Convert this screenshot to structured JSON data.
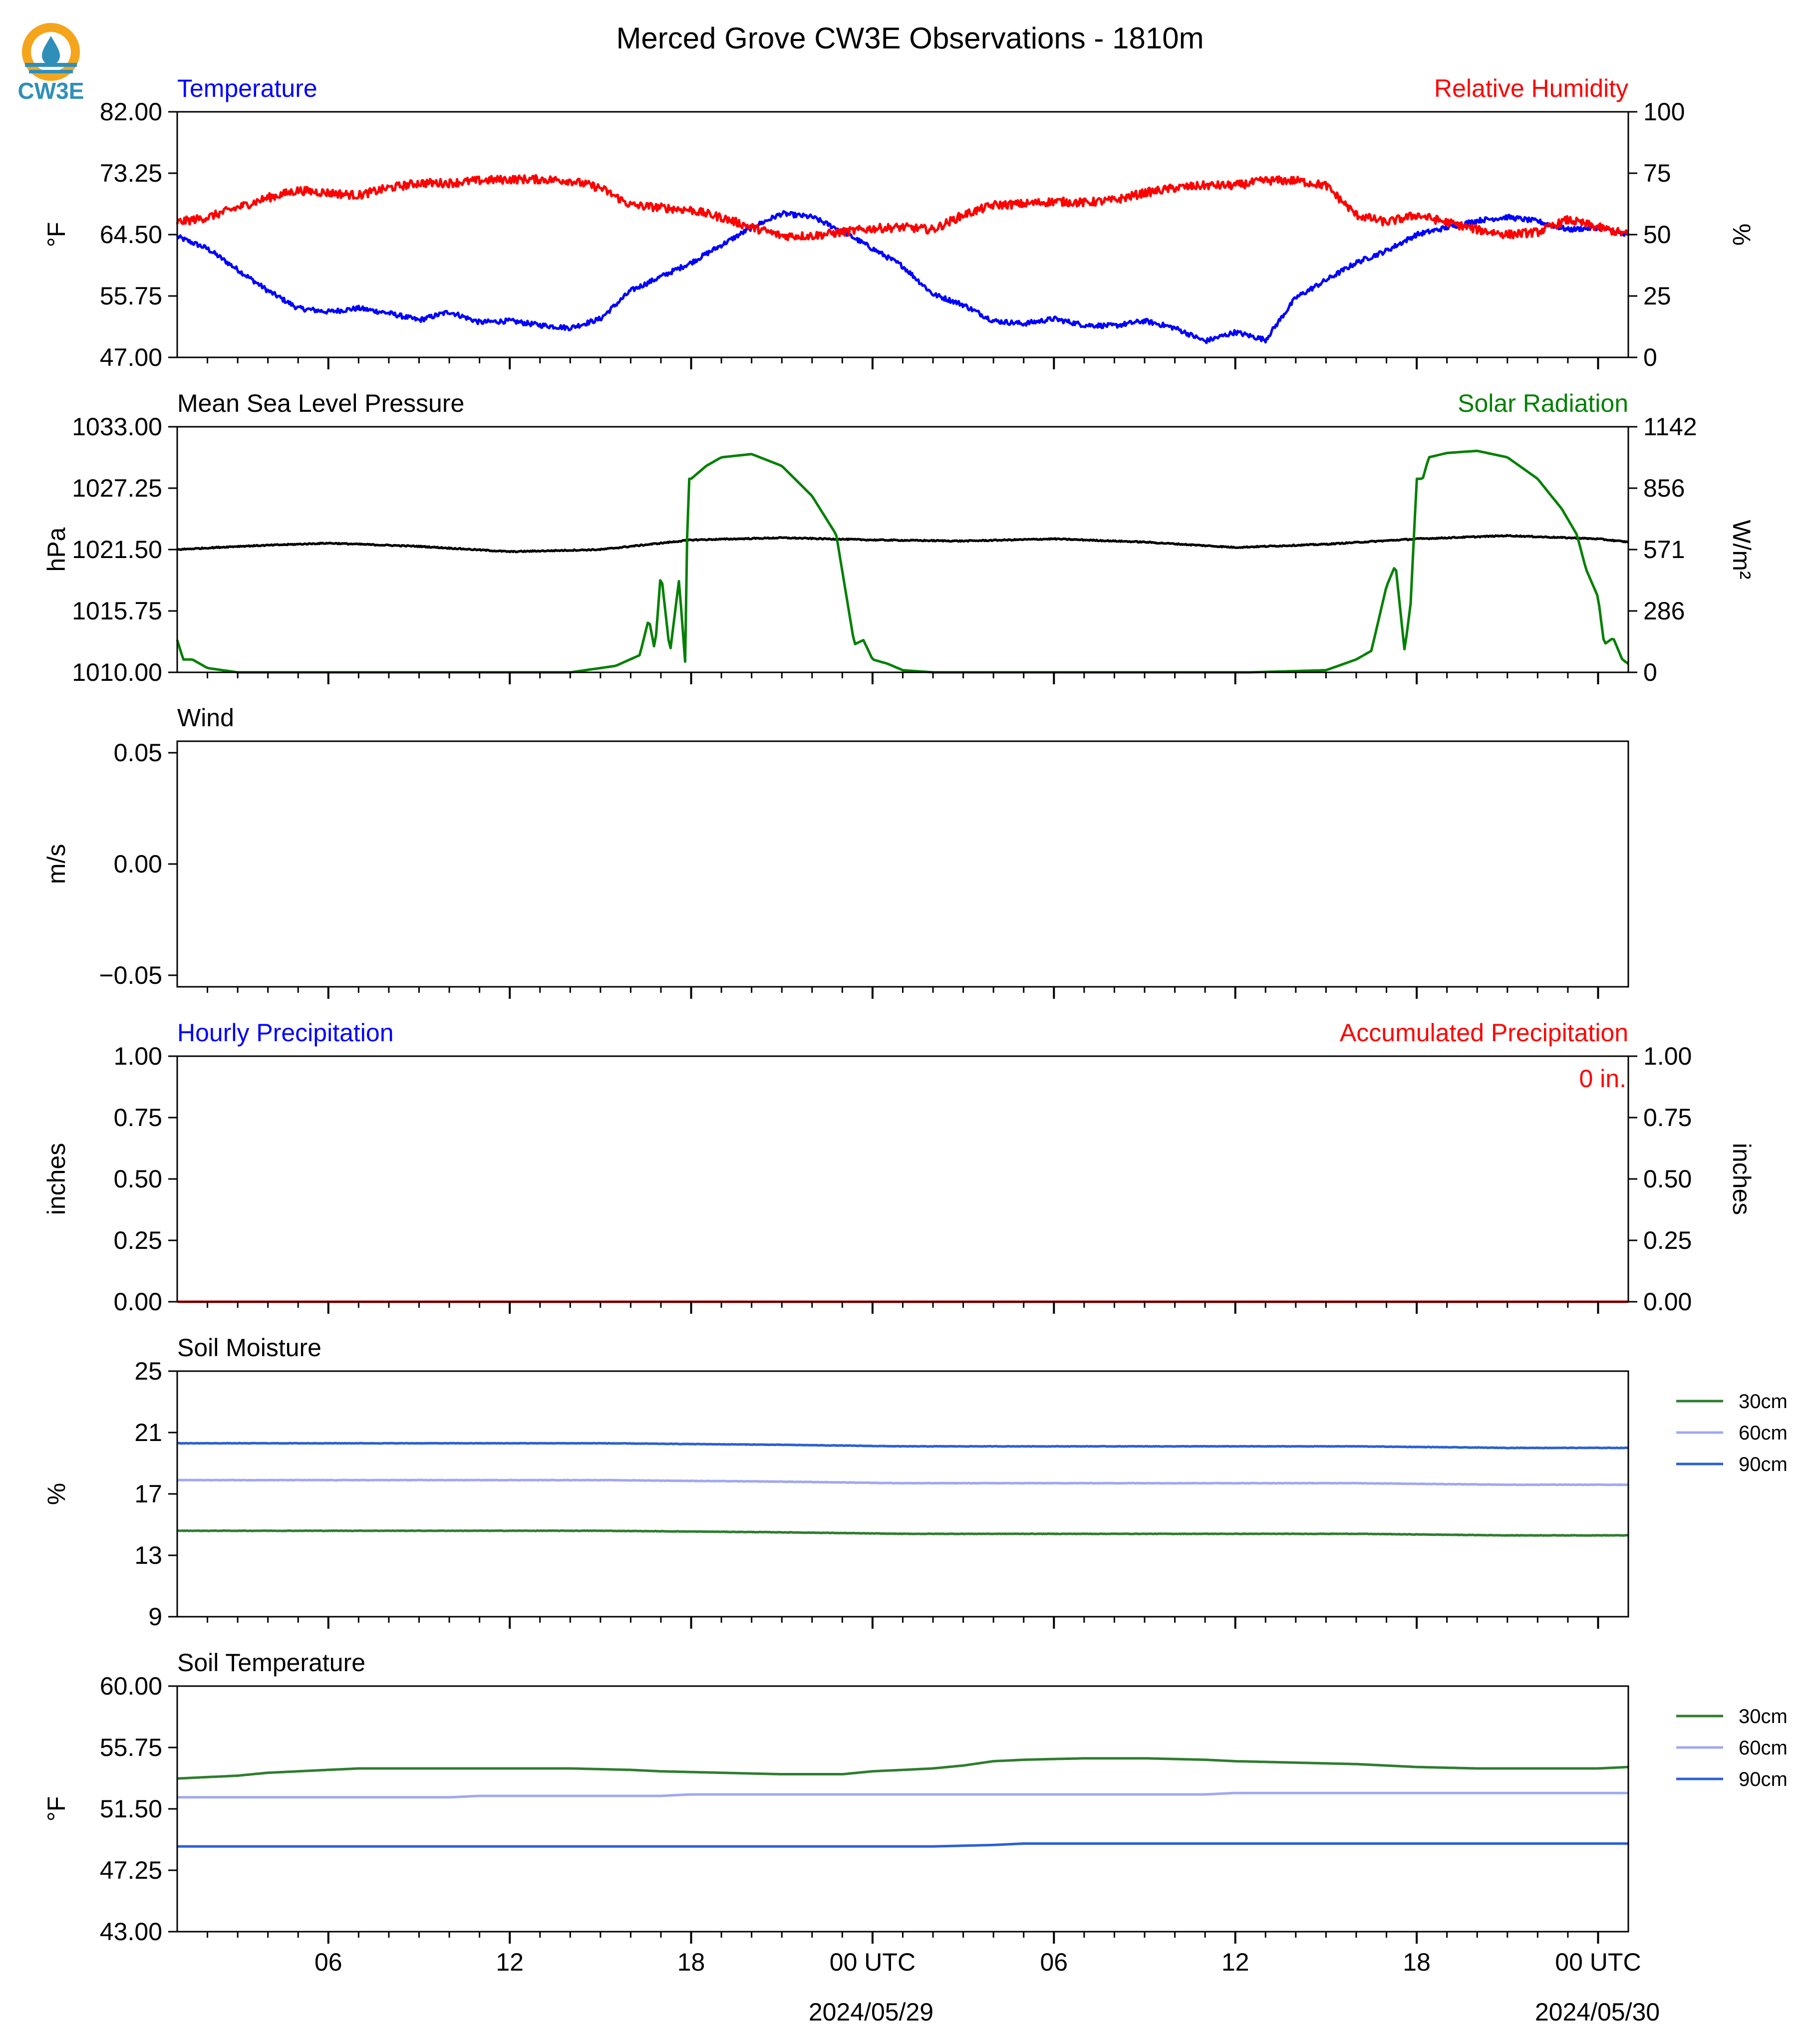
{
  "logo": {
    "text": "CW3E",
    "colors": {
      "ring": "#f4a51c",
      "drop": "#2f8fb9",
      "text": "#2f8fb9"
    }
  },
  "figure": {
    "title": "Merced Grove CW3E Observations - 1810m"
  },
  "x_axis": {
    "time_range": [
      "2024-05-28T01:00Z",
      "2024-05-30T01:00Z"
    ],
    "tick_labels": [
      "06",
      "12",
      "18",
      "00 UTC",
      "06",
      "12",
      "18",
      "00 UTC"
    ],
    "date_labels": [
      "2024/05/29",
      "2024/05/30"
    ]
  },
  "chart_data": [
    {
      "id": "temp_rh",
      "type": "line",
      "title_left": "Temperature",
      "title_right": "Relative Humidity",
      "ylabel_left": "°F",
      "ylabel_right": "%",
      "ylim": [
        47,
        82
      ],
      "yticks": [
        "47.00",
        "55.75",
        "64.50",
        "73.25",
        "82.00"
      ],
      "ylim_right": [
        0,
        100
      ],
      "yticks_right": [
        "0",
        "25",
        "50",
        "75",
        "100"
      ],
      "series": [
        {
          "name": "Temperature",
          "axis": "left",
          "color": "#0000ff",
          "noise": 0.35,
          "x": [
            1,
            2,
            3,
            4,
            5,
            6,
            7,
            8,
            9,
            10,
            11,
            12,
            13,
            14,
            15,
            16,
            17,
            18,
            19,
            20,
            21,
            22,
            23,
            24,
            25,
            26,
            27,
            28,
            29,
            30,
            31,
            32,
            33,
            34,
            35,
            36,
            37,
            38,
            39,
            40,
            41,
            42,
            43,
            44,
            45,
            46,
            47,
            48,
            49
          ],
          "y": [
            64.2,
            62.5,
            59.5,
            56.5,
            54,
            53.5,
            54,
            53.3,
            52.3,
            53.5,
            52,
            52.2,
            51.6,
            51.2,
            52.5,
            56.5,
            58.5,
            60.5,
            63,
            65.5,
            67.5,
            67,
            65,
            62.5,
            60,
            56,
            54.5,
            52.2,
            51.8,
            52.5,
            51.6,
            51.5,
            52.2,
            51.2,
            49.3,
            50.6,
            49.5,
            55.5,
            58,
            60.5,
            62.2,
            64.5,
            65.5,
            66.5,
            67,
            66.4,
            65.2,
            65.5,
            64.3
          ]
        },
        {
          "name": "Relative Humidity",
          "axis": "right",
          "color": "#ff0000",
          "noise": 0.6,
          "x": [
            1,
            2,
            3,
            4,
            5,
            6,
            7,
            8,
            9,
            10,
            11,
            12,
            13,
            14,
            15,
            16,
            17,
            18,
            19,
            20,
            21,
            22,
            23,
            24,
            25,
            26,
            27,
            28,
            29,
            30,
            31,
            32,
            33,
            34,
            35,
            36,
            37,
            38,
            39,
            40,
            41,
            42,
            43,
            44,
            45,
            46,
            47,
            48,
            49
          ],
          "y": [
            55,
            57,
            61,
            65,
            68,
            67,
            66,
            69,
            71,
            71,
            72,
            72.5,
            72.5,
            72,
            69,
            62,
            61,
            60,
            57,
            53,
            49.5,
            49.5,
            51,
            52.5,
            53,
            52,
            58,
            62,
            62.5,
            63.5,
            63,
            64,
            67,
            69,
            70,
            70,
            72,
            72,
            70,
            58,
            55,
            58,
            55,
            52,
            50,
            51,
            56,
            53,
            50
          ]
        }
      ]
    },
    {
      "id": "pressure_solar",
      "type": "line",
      "title_left": "Mean Sea Level Pressure",
      "title_right": "Solar Radiation",
      "ylabel_left": "hPa",
      "ylabel_right": "W/m²",
      "ylim": [
        1010,
        1033
      ],
      "yticks": [
        "1010.00",
        "1015.75",
        "1021.50",
        "1027.25",
        "1033.00"
      ],
      "ylim_right": [
        0,
        1142
      ],
      "yticks_right": [
        "0",
        "286",
        "571",
        "856",
        "1142"
      ],
      "series": [
        {
          "name": "Mean Sea Level Pressure",
          "axis": "left",
          "color": "#000000",
          "noise": 0.08,
          "x": [
            1,
            3,
            6,
            9,
            12,
            15,
            18,
            21,
            24,
            27,
            30,
            33,
            36,
            39,
            42,
            45,
            48,
            49
          ],
          "y": [
            1021.5,
            1021.8,
            1022.1,
            1021.8,
            1021.3,
            1021.5,
            1022.4,
            1022.6,
            1022.4,
            1022.3,
            1022.5,
            1022.2,
            1021.7,
            1022.0,
            1022.5,
            1022.8,
            1022.5,
            1022.2
          ]
        },
        {
          "name": "Solar Radiation",
          "axis": "right",
          "color": "#008000",
          "noise": 0,
          "x": [
            1,
            1.2,
            1.5,
            2,
            3,
            5,
            8,
            11,
            14,
            15.5,
            16.3,
            16.6,
            16.8,
            17,
            17.3,
            17.6,
            17.8,
            17.9,
            18,
            18.5,
            19,
            20,
            21,
            22,
            22.8,
            23.2,
            23.4,
            23.7,
            24,
            24.5,
            25,
            26,
            28,
            31,
            34,
            36.5,
            39,
            40,
            40.5,
            41,
            41.3,
            41.6,
            41.8,
            42,
            42.2,
            42.4,
            43,
            44,
            45,
            46,
            46.8,
            47.3,
            47.6,
            48,
            48.2,
            48.5,
            48.8,
            49
          ],
          "y": [
            150,
            60,
            60,
            20,
            0,
            0,
            0,
            0,
            0,
            30,
            80,
            250,
            100,
            470,
            90,
            430,
            50,
            900,
            900,
            960,
            1000,
            1015,
            960,
            820,
            640,
            300,
            130,
            150,
            60,
            40,
            10,
            0,
            0,
            0,
            0,
            0,
            10,
            60,
            100,
            400,
            500,
            100,
            320,
            900,
            900,
            1000,
            1020,
            1030,
            1000,
            900,
            760,
            640,
            480,
            350,
            130,
            160,
            60,
            40
          ]
        }
      ]
    },
    {
      "id": "wind",
      "type": "line",
      "title_left": "Wind",
      "ylabel_left": "m/s",
      "ylim": [
        -0.0552,
        0.0552
      ],
      "yticks": [
        "−0.05",
        "0.00",
        "0.05"
      ],
      "series": []
    },
    {
      "id": "precip",
      "type": "line",
      "title_left": "Hourly Precipitation",
      "title_right": "Accumulated Precipitation",
      "ylabel_left": "inches",
      "ylabel_right": "inches",
      "ylim": [
        0,
        1
      ],
      "yticks": [
        "0.00",
        "0.25",
        "0.50",
        "0.75",
        "1.00"
      ],
      "ylim_right": [
        0,
        1
      ],
      "yticks_right": [
        "0.00",
        "0.25",
        "0.50",
        "0.75",
        "1.00"
      ],
      "annotation": "0 in.",
      "series": [
        {
          "name": "Hourly Precipitation",
          "axis": "left",
          "color": "#0000ff",
          "noise": 0,
          "x": [
            1,
            49
          ],
          "y": [
            0,
            0
          ]
        },
        {
          "name": "Accumulated Precipitation",
          "axis": "right",
          "color": "#ff0000",
          "noise": 0,
          "x": [
            1,
            49
          ],
          "y": [
            0,
            0
          ]
        }
      ]
    },
    {
      "id": "soil_moisture",
      "type": "line",
      "title_left": "Soil Moisture",
      "ylabel_left": "%",
      "ylim": [
        9,
        25
      ],
      "yticks": [
        "9",
        "13",
        "17",
        "21",
        "25"
      ],
      "legend": {
        "entries": [
          "30cm",
          "60cm",
          "90cm"
        ]
      },
      "series": [
        {
          "name": "30cm",
          "axis": "left",
          "color": "#2e7d2e",
          "noise": 0.03,
          "x": [
            1,
            15,
            21,
            25,
            33,
            40,
            45,
            49
          ],
          "y": [
            14.6,
            14.6,
            14.5,
            14.4,
            14.4,
            14.4,
            14.3,
            14.3
          ]
        },
        {
          "name": "60cm",
          "axis": "left",
          "color": "#a0a8f0",
          "noise": 0.03,
          "x": [
            1,
            15,
            21,
            25,
            33,
            40,
            45,
            49
          ],
          "y": [
            17.9,
            17.9,
            17.8,
            17.7,
            17.7,
            17.7,
            17.6,
            17.6
          ]
        },
        {
          "name": "90cm",
          "axis": "left",
          "color": "#2a5fd8",
          "noise": 0.03,
          "x": [
            1,
            15,
            21,
            25,
            33,
            40,
            45,
            49
          ],
          "y": [
            20.3,
            20.3,
            20.2,
            20.1,
            20.1,
            20.1,
            20.0,
            20.0
          ]
        }
      ]
    },
    {
      "id": "soil_temperature",
      "type": "line",
      "title_left": "Soil Temperature",
      "ylabel_left": "°F",
      "ylim": [
        43,
        60
      ],
      "yticks": [
        "43.00",
        "47.25",
        "51.50",
        "55.75",
        "60.00"
      ],
      "legend": {
        "entries": [
          "30cm",
          "60cm",
          "90cm"
        ]
      },
      "series": [
        {
          "name": "30cm",
          "axis": "left",
          "color": "#2e7d2e",
          "noise": 0,
          "x": [
            1,
            2,
            3,
            4,
            5,
            6,
            7,
            9,
            10,
            14,
            16,
            17,
            19,
            21,
            23,
            24,
            26,
            27,
            28,
            29,
            31,
            33,
            35,
            36,
            38,
            40,
            42,
            44,
            46,
            48,
            49
          ],
          "y": [
            53.6,
            53.7,
            53.8,
            54.0,
            54.1,
            54.2,
            54.3,
            54.3,
            54.3,
            54.3,
            54.2,
            54.1,
            54.0,
            53.9,
            53.9,
            54.1,
            54.3,
            54.5,
            54.8,
            54.9,
            55.0,
            55.0,
            54.9,
            54.8,
            54.7,
            54.6,
            54.4,
            54.3,
            54.3,
            54.3,
            54.4
          ]
        },
        {
          "name": "60cm",
          "axis": "left",
          "color": "#a0a8f0",
          "noise": 0,
          "x": [
            1,
            10,
            11,
            17,
            18,
            25,
            30,
            35,
            36,
            44,
            49
          ],
          "y": [
            52.3,
            52.3,
            52.4,
            52.4,
            52.5,
            52.5,
            52.5,
            52.5,
            52.6,
            52.6,
            52.6
          ]
        },
        {
          "name": "90cm",
          "axis": "left",
          "color": "#2a5fd8",
          "noise": 0,
          "x": [
            1,
            26,
            28,
            29,
            49
          ],
          "y": [
            48.9,
            48.9,
            49.0,
            49.1,
            49.1
          ]
        }
      ]
    }
  ]
}
